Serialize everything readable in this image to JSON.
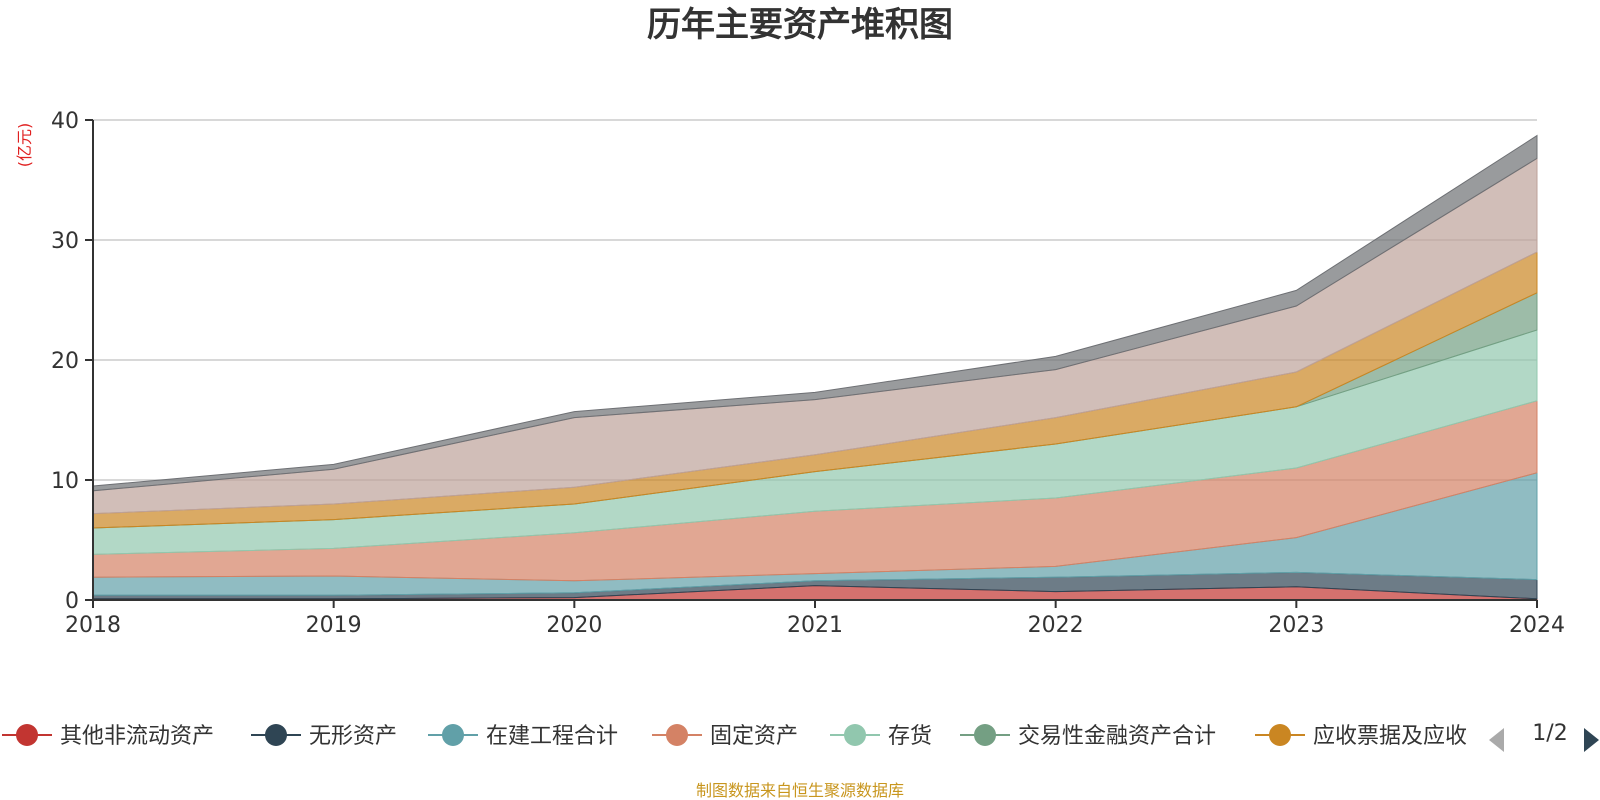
{
  "chart_data": {
    "type": "area",
    "stacked": true,
    "title": "历年主要资产堆积图",
    "unit_label": "(亿元)",
    "x": [
      "2018",
      "2019",
      "2020",
      "2021",
      "2022",
      "2023",
      "2024"
    ],
    "ylim": [
      0,
      40
    ],
    "yticks": [
      0,
      10,
      20,
      30,
      40
    ],
    "grid": true,
    "legend_position": "bottom",
    "legend_page": "1/2",
    "source_note": "制图数据来自恒生聚源数据库",
    "series": [
      {
        "name": "其他非流动资产",
        "color": "#c23531",
        "values": [
          0.1,
          0.1,
          0.2,
          1.2,
          0.7,
          1.1,
          0.1
        ]
      },
      {
        "name": "无形资产",
        "color": "#2f4554",
        "values": [
          0.3,
          0.3,
          0.4,
          0.4,
          1.2,
          1.2,
          1.6
        ]
      },
      {
        "name": "在建工程合计",
        "color": "#61a0a8",
        "values": [
          1.5,
          1.6,
          1.0,
          0.6,
          0.9,
          2.9,
          8.9
        ]
      },
      {
        "name": "固定资产",
        "color": "#d48265",
        "values": [
          1.9,
          2.3,
          4.0,
          5.2,
          5.7,
          5.8,
          6.0
        ]
      },
      {
        "name": "存货",
        "color": "#91c7ae",
        "values": [
          2.2,
          2.4,
          2.4,
          3.3,
          4.5,
          5.1,
          5.9
        ]
      },
      {
        "name": "交易性金融资产合计",
        "color": "#749f83",
        "values": [
          0.0,
          0.0,
          0.0,
          0.0,
          0.0,
          0.0,
          3.1
        ]
      },
      {
        "name": "应收票据及应收",
        "color": "#ca8622",
        "values": [
          1.2,
          1.3,
          1.4,
          1.4,
          2.2,
          2.9,
          3.4
        ]
      },
      {
        "color": "#bda29a",
        "values": [
          1.9,
          2.9,
          5.8,
          4.6,
          4.0,
          5.5,
          7.8
        ]
      },
      {
        "color": "#6e7074",
        "values": [
          0.4,
          0.4,
          0.5,
          0.6,
          1.1,
          1.3,
          1.9
        ]
      }
    ]
  }
}
